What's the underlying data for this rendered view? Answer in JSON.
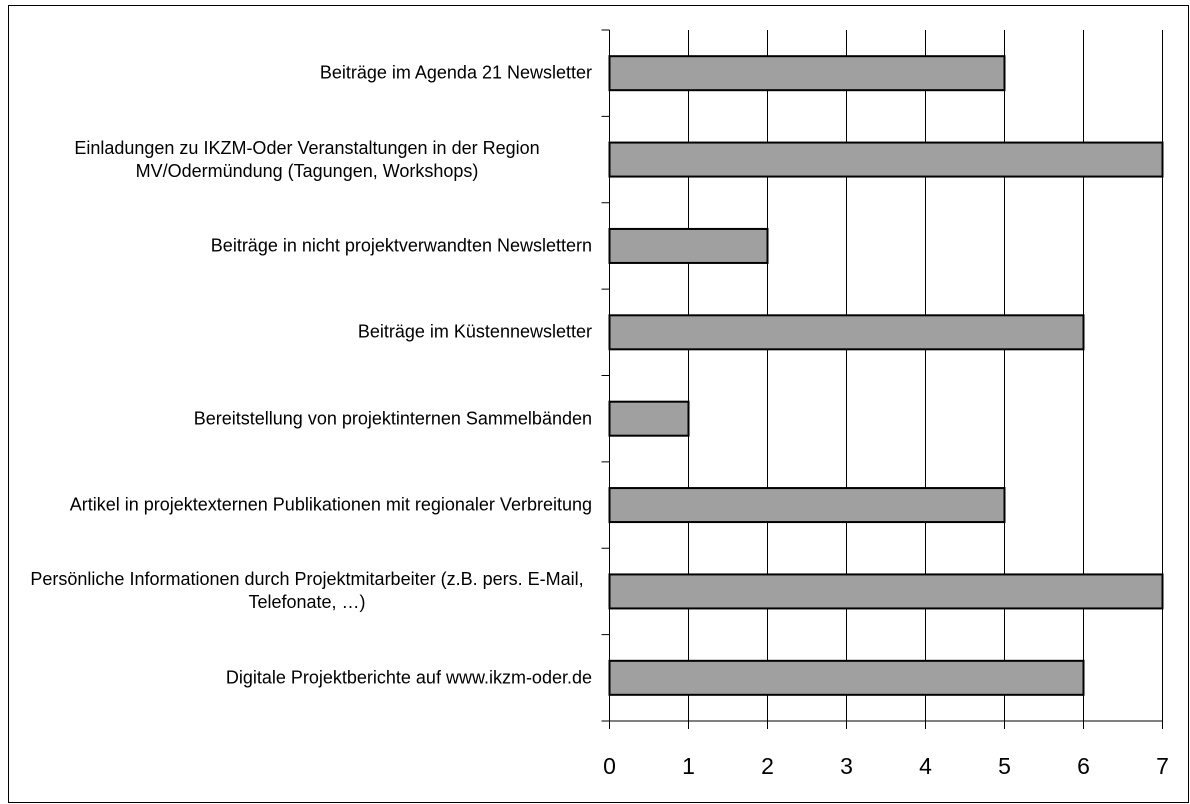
{
  "chart_data": {
    "type": "bar",
    "orientation": "horizontal",
    "categories": [
      "Beiträge im Agenda 21 Newsletter",
      "Einladungen zu IKZM-Oder Veranstaltungen in der Region MV/Odermündung (Tagungen, Workshops)",
      "Beiträge in nicht projektverwandten Newslettern",
      "Beiträge im Küstennewsletter",
      "Bereitstellung von projektinternen Sammelbänden",
      "Artikel in projektexternen Publikationen mit regionaler Verbreitung",
      "Persönliche Informationen durch Projektmitarbeiter (z.B. pers. E-Mail, Telefonate, …)",
      "Digitale Projektberichte auf www.ikzm-oder.de"
    ],
    "values": [
      5,
      7,
      2,
      6,
      1,
      5,
      7,
      6
    ],
    "color": "#a0a0a0",
    "xlim": [
      0,
      7
    ],
    "xticks": [
      0,
      1,
      2,
      3,
      4,
      5,
      6,
      7
    ],
    "grid": true
  }
}
